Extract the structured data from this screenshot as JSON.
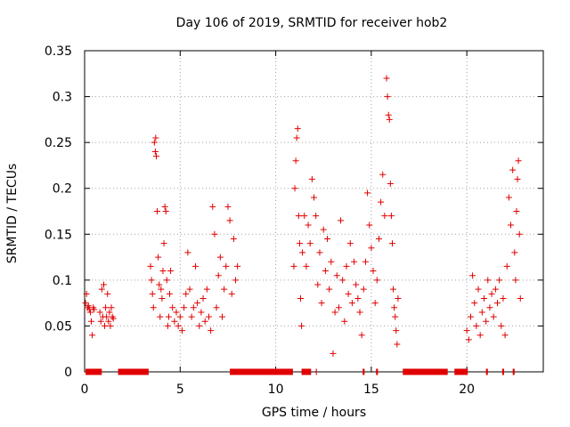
{
  "chart_data": {
    "type": "scatter",
    "title": "Day 106 of 2019, SRMTID for receiver hob2",
    "xlabel": "GPS time / hours",
    "ylabel": "SRMTID / TECUs",
    "xlim": [
      0,
      24
    ],
    "ylim": [
      0,
      0.35
    ],
    "xticks": [
      0,
      5,
      10,
      15,
      20
    ],
    "yticks": [
      0,
      0.05,
      0.1,
      0.15,
      0.2,
      0.25,
      0.3,
      0.35
    ],
    "xtick_labels": [
      "0",
      "5",
      "10",
      "15",
      "20"
    ],
    "ytick_labels": [
      "0",
      "0.05",
      "0.1",
      "0.15",
      "0.2",
      "0.25",
      "0.3",
      "0.35"
    ],
    "grid": true,
    "marker": "+",
    "marker_color": "#e00000",
    "series": [
      {
        "name": "SRMTID",
        "points": [
          [
            0.05,
            0.075
          ],
          [
            0.1,
            0.085
          ],
          [
            0.15,
            0.07
          ],
          [
            0.2,
            0.072
          ],
          [
            0.25,
            0.068
          ],
          [
            0.3,
            0.065
          ],
          [
            0.35,
            0.055
          ],
          [
            0.4,
            0.04
          ],
          [
            0.45,
            0.07
          ],
          [
            0.5,
            0.068
          ],
          [
            0.8,
            0.065
          ],
          [
            0.85,
            0.055
          ],
          [
            0.9,
            0.09
          ],
          [
            0.95,
            0.06
          ],
          [
            1.0,
            0.095
          ],
          [
            1.05,
            0.05
          ],
          [
            1.1,
            0.07
          ],
          [
            1.15,
            0.06
          ],
          [
            1.2,
            0.085
          ],
          [
            1.25,
            0.055
          ],
          [
            1.3,
            0.065
          ],
          [
            1.35,
            0.05
          ],
          [
            1.4,
            0.07
          ],
          [
            1.45,
            0.06
          ],
          [
            1.5,
            0.058
          ],
          [
            3.45,
            0.115
          ],
          [
            3.5,
            0.1
          ],
          [
            3.55,
            0.085
          ],
          [
            3.6,
            0.07
          ],
          [
            3.65,
            0.25
          ],
          [
            3.7,
            0.24
          ],
          [
            3.72,
            0.255
          ],
          [
            3.75,
            0.235
          ],
          [
            3.8,
            0.175
          ],
          [
            3.85,
            0.125
          ],
          [
            3.9,
            0.095
          ],
          [
            3.95,
            0.06
          ],
          [
            4.0,
            0.09
          ],
          [
            4.05,
            0.08
          ],
          [
            4.1,
            0.11
          ],
          [
            4.15,
            0.14
          ],
          [
            4.2,
            0.18
          ],
          [
            4.25,
            0.175
          ],
          [
            4.3,
            0.1
          ],
          [
            4.35,
            0.05
          ],
          [
            4.4,
            0.06
          ],
          [
            4.45,
            0.085
          ],
          [
            4.5,
            0.11
          ],
          [
            4.6,
            0.07
          ],
          [
            4.7,
            0.055
          ],
          [
            4.8,
            0.065
          ],
          [
            4.9,
            0.05
          ],
          [
            5.0,
            0.06
          ],
          [
            5.1,
            0.045
          ],
          [
            5.2,
            0.07
          ],
          [
            5.3,
            0.085
          ],
          [
            5.4,
            0.13
          ],
          [
            5.5,
            0.09
          ],
          [
            5.6,
            0.06
          ],
          [
            5.7,
            0.07
          ],
          [
            5.8,
            0.115
          ],
          [
            5.9,
            0.075
          ],
          [
            6.0,
            0.05
          ],
          [
            6.1,
            0.065
          ],
          [
            6.2,
            0.08
          ],
          [
            6.3,
            0.055
          ],
          [
            6.4,
            0.09
          ],
          [
            6.5,
            0.06
          ],
          [
            6.6,
            0.045
          ],
          [
            6.7,
            0.18
          ],
          [
            6.8,
            0.15
          ],
          [
            6.9,
            0.07
          ],
          [
            7.0,
            0.105
          ],
          [
            7.1,
            0.125
          ],
          [
            7.2,
            0.06
          ],
          [
            7.3,
            0.09
          ],
          [
            7.4,
            0.115
          ],
          [
            7.5,
            0.18
          ],
          [
            7.6,
            0.165
          ],
          [
            7.7,
            0.085
          ],
          [
            7.8,
            0.145
          ],
          [
            7.9,
            0.1
          ],
          [
            8.0,
            0.115
          ],
          [
            10.95,
            0.115
          ],
          [
            11.0,
            0.2
          ],
          [
            11.05,
            0.23
          ],
          [
            11.1,
            0.255
          ],
          [
            11.15,
            0.265
          ],
          [
            11.2,
            0.17
          ],
          [
            11.25,
            0.14
          ],
          [
            11.3,
            0.08
          ],
          [
            11.35,
            0.05
          ],
          [
            11.4,
            0.13
          ],
          [
            11.5,
            0.17
          ],
          [
            11.6,
            0.115
          ],
          [
            11.7,
            0.16
          ],
          [
            11.8,
            0.14
          ],
          [
            11.9,
            0.21
          ],
          [
            12.0,
            0.19
          ],
          [
            12.1,
            0.17
          ],
          [
            12.2,
            0.095
          ],
          [
            12.3,
            0.13
          ],
          [
            12.4,
            0.075
          ],
          [
            12.5,
            0.155
          ],
          [
            12.6,
            0.11
          ],
          [
            12.7,
            0.145
          ],
          [
            12.8,
            0.09
          ],
          [
            12.9,
            0.12
          ],
          [
            13.0,
            0.02
          ],
          [
            13.1,
            0.065
          ],
          [
            13.2,
            0.105
          ],
          [
            13.3,
            0.07
          ],
          [
            13.4,
            0.165
          ],
          [
            13.5,
            0.1
          ],
          [
            13.6,
            0.055
          ],
          [
            13.7,
            0.115
          ],
          [
            13.8,
            0.085
          ],
          [
            13.9,
            0.14
          ],
          [
            14.0,
            0.075
          ],
          [
            14.1,
            0.12
          ],
          [
            14.2,
            0.095
          ],
          [
            14.3,
            0.08
          ],
          [
            14.4,
            0.065
          ],
          [
            14.5,
            0.04
          ],
          [
            14.6,
            0.09
          ],
          [
            14.7,
            0.12
          ],
          [
            14.8,
            0.195
          ],
          [
            14.9,
            0.16
          ],
          [
            15.0,
            0.135
          ],
          [
            15.1,
            0.11
          ],
          [
            15.2,
            0.075
          ],
          [
            15.3,
            0.1
          ],
          [
            15.4,
            0.145
          ],
          [
            15.5,
            0.185
          ],
          [
            15.6,
            0.215
          ],
          [
            15.7,
            0.17
          ],
          [
            15.8,
            0.32
          ],
          [
            15.85,
            0.3
          ],
          [
            15.9,
            0.28
          ],
          [
            15.95,
            0.275
          ],
          [
            16.0,
            0.205
          ],
          [
            16.05,
            0.17
          ],
          [
            16.1,
            0.14
          ],
          [
            16.15,
            0.09
          ],
          [
            16.2,
            0.07
          ],
          [
            16.25,
            0.06
          ],
          [
            16.3,
            0.045
          ],
          [
            16.35,
            0.03
          ],
          [
            16.4,
            0.08
          ],
          [
            20.0,
            0.045
          ],
          [
            20.1,
            0.035
          ],
          [
            20.2,
            0.06
          ],
          [
            20.3,
            0.105
          ],
          [
            20.4,
            0.075
          ],
          [
            20.5,
            0.05
          ],
          [
            20.6,
            0.09
          ],
          [
            20.7,
            0.04
          ],
          [
            20.8,
            0.065
          ],
          [
            20.9,
            0.08
          ],
          [
            21.0,
            0.055
          ],
          [
            21.1,
            0.1
          ],
          [
            21.2,
            0.07
          ],
          [
            21.3,
            0.085
          ],
          [
            21.4,
            0.06
          ],
          [
            21.5,
            0.09
          ],
          [
            21.6,
            0.075
          ],
          [
            21.7,
            0.1
          ],
          [
            21.8,
            0.05
          ],
          [
            21.9,
            0.08
          ],
          [
            22.0,
            0.04
          ],
          [
            22.1,
            0.115
          ],
          [
            22.2,
            0.19
          ],
          [
            22.3,
            0.16
          ],
          [
            22.4,
            0.22
          ],
          [
            22.5,
            0.13
          ],
          [
            22.55,
            0.1
          ],
          [
            22.6,
            0.175
          ],
          [
            22.65,
            0.21
          ],
          [
            22.7,
            0.23
          ],
          [
            22.75,
            0.15
          ],
          [
            22.8,
            0.08
          ]
        ],
        "zero_segments": [
          [
            0.05,
            0.9
          ],
          [
            1.75,
            3.35
          ],
          [
            7.6,
            10.9
          ],
          [
            11.35,
            11.85
          ],
          [
            12.1,
            12.15
          ],
          [
            14.55,
            14.65
          ],
          [
            15.25,
            15.35
          ],
          [
            16.65,
            19.0
          ],
          [
            19.35,
            20.05
          ],
          [
            21.0,
            21.1
          ],
          [
            21.85,
            21.95
          ],
          [
            22.4,
            22.5
          ]
        ]
      }
    ]
  }
}
